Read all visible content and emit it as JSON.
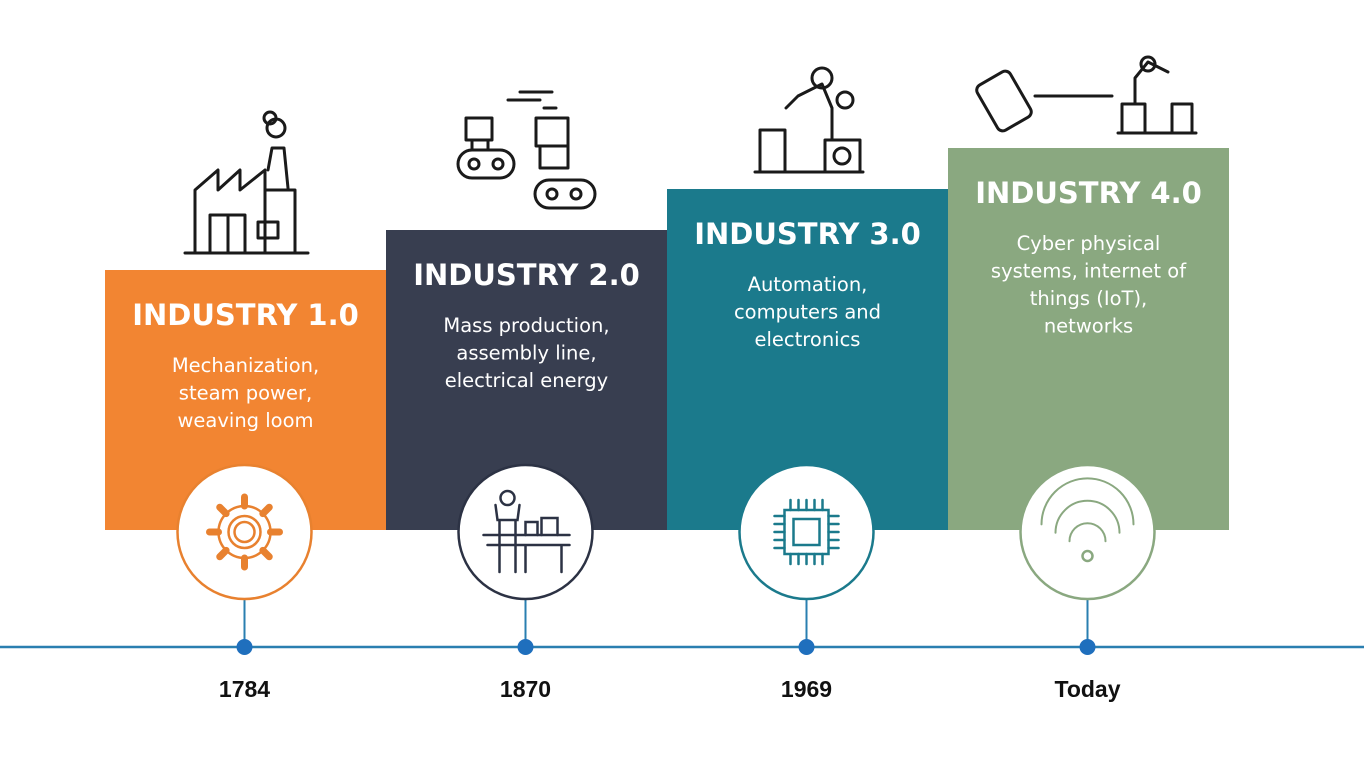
{
  "stages": [
    {
      "title": "INDUSTRY 1.0",
      "description": [
        "Mechanization,",
        "steam power,",
        "weaving loom"
      ],
      "year": "1784"
    },
    {
      "title": "INDUSTRY 2.0",
      "description": [
        "Mass production,",
        "assembly line,",
        "electrical energy"
      ],
      "year": "1870"
    },
    {
      "title": "INDUSTRY 3.0",
      "description": [
        "Automation,",
        "computers and",
        "electronics"
      ],
      "year": "1969"
    },
    {
      "title": "INDUSTRY 4.0",
      "description": [
        "Cyber physical",
        "systems, internet of",
        "things (IoT),",
        "networks"
      ],
      "year": "Today"
    }
  ]
}
